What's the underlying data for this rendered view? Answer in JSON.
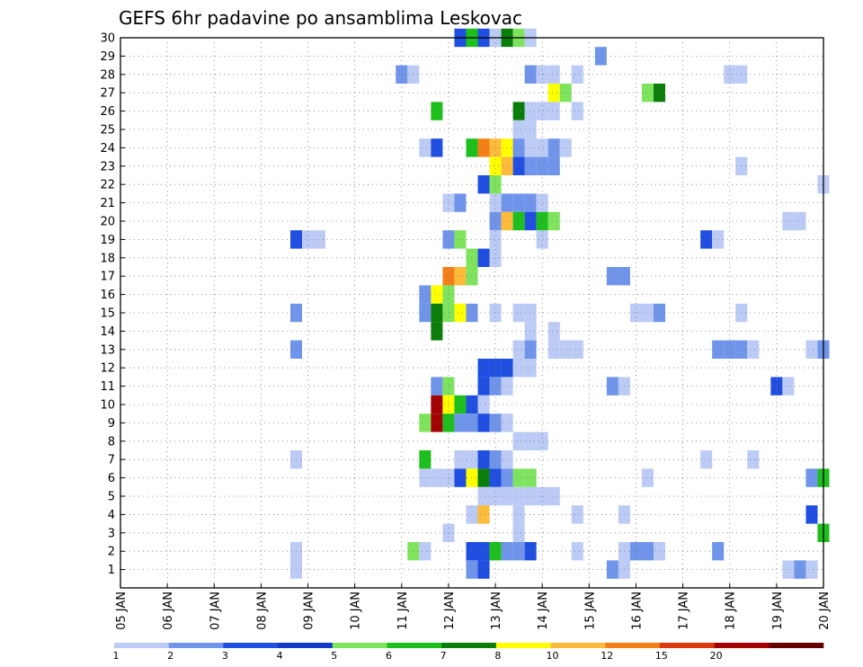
{
  "chart_data": {
    "type": "heatmap",
    "title": "GEFS 6hr padavine po ansamblima Leskovac",
    "xlabel": "",
    "ylabel": "",
    "x_tick_labels": [
      "05 JAN",
      "06 JAN",
      "07 JAN",
      "08 JAN",
      "09 JAN",
      "10 JAN",
      "11 JAN",
      "12 JAN",
      "13 JAN",
      "14 JAN",
      "15 JAN",
      "16 JAN",
      "17 JAN",
      "18 JAN",
      "19 JAN",
      "20 JAN"
    ],
    "x_range": [
      "05 JAN 00Z",
      "20 JAN 00Z"
    ],
    "time_step_hours": 6,
    "y_tick_labels": [
      "1",
      "2",
      "3",
      "4",
      "5",
      "6",
      "7",
      "8",
      "9",
      "10",
      "11",
      "12",
      "13",
      "14",
      "15",
      "16",
      "17",
      "18",
      "19",
      "20",
      "21",
      "22",
      "23",
      "24",
      "25",
      "26",
      "27",
      "28",
      "29",
      "30"
    ],
    "y_range": [
      0,
      30
    ],
    "grid": "dotted",
    "colorbar": {
      "position": "bottom",
      "tick_labels": [
        "1",
        "2",
        "3",
        "4",
        "5",
        "6",
        "7",
        "8",
        "10",
        "12",
        "15",
        "20"
      ],
      "colors": [
        "#bccbf5",
        "#6f94ea",
        "#1f4ee0",
        "#1339c7",
        "#7ee35d",
        "#1dbf1d",
        "#0b7d0b",
        "#ffff00",
        "#fdbb3b",
        "#f57f17",
        "#d93b0e",
        "#a40303",
        "#640000"
      ]
    },
    "cells": [
      {
        "m": 30,
        "t": [
          "12 JAN 06Z",
          "12 JAN 12Z",
          "12 JAN 18Z",
          "13 JAN 00Z",
          "13 JAN 06Z",
          "13 JAN 12Z",
          "13 JAN 18Z"
        ],
        "l": [
          3,
          6,
          3,
          1,
          7,
          5,
          1
        ]
      },
      {
        "m": 29,
        "t": [
          "15 JAN 06Z"
        ],
        "l": [
          2
        ]
      },
      {
        "m": 28,
        "t": [
          "11 JAN 00Z",
          "11 JAN 06Z",
          "13 JAN 18Z",
          "14 JAN 00Z",
          "14 JAN 06Z",
          "14 JAN 18Z",
          "18 JAN 00Z",
          "18 JAN 06Z"
        ],
        "l": [
          2,
          1,
          2,
          1,
          1,
          1,
          1,
          1
        ]
      },
      {
        "m": 27,
        "t": [
          "14 JAN 06Z",
          "14 JAN 12Z",
          "16 JAN 06Z",
          "16 JAN 12Z"
        ],
        "l": [
          8,
          5,
          5,
          7
        ]
      },
      {
        "m": 26,
        "t": [
          "11 JAN 18Z",
          "13 JAN 12Z",
          "13 JAN 18Z",
          "14 JAN 00Z",
          "14 JAN 06Z",
          "14 JAN 18Z"
        ],
        "l": [
          6,
          7,
          1,
          1,
          1,
          1
        ]
      },
      {
        "m": 25,
        "t": [
          "13 JAN 12Z",
          "13 JAN 18Z"
        ],
        "l": [
          1,
          1
        ]
      },
      {
        "m": 24,
        "t": [
          "11 JAN 12Z",
          "11 JAN 18Z",
          "12 JAN 12Z",
          "12 JAN 18Z",
          "13 JAN 00Z",
          "13 JAN 06Z",
          "13 JAN 12Z",
          "13 JAN 18Z",
          "14 JAN 00Z",
          "14 JAN 06Z",
          "14 JAN 12Z"
        ],
        "l": [
          1,
          3,
          6,
          10,
          9,
          8,
          2,
          1,
          1,
          2,
          1
        ]
      },
      {
        "m": 23,
        "t": [
          "13 JAN 00Z",
          "13 JAN 06Z",
          "13 JAN 12Z",
          "13 JAN 18Z",
          "14 JAN 00Z",
          "14 JAN 06Z",
          "18 JAN 06Z"
        ],
        "l": [
          8,
          9,
          3,
          2,
          2,
          2,
          1
        ]
      },
      {
        "m": 22,
        "t": [
          "12 JAN 18Z",
          "13 JAN 00Z",
          "20 JAN 00Z"
        ],
        "l": [
          3,
          5,
          1
        ]
      },
      {
        "m": 21,
        "t": [
          "12 JAN 00Z",
          "12 JAN 06Z",
          "13 JAN 00Z",
          "13 JAN 06Z",
          "13 JAN 12Z",
          "13 JAN 18Z",
          "14 JAN 00Z"
        ],
        "l": [
          1,
          2,
          1,
          2,
          2,
          2,
          1
        ]
      },
      {
        "m": 20,
        "t": [
          "13 JAN 00Z",
          "13 JAN 06Z",
          "13 JAN 12Z",
          "13 JAN 18Z",
          "14 JAN 00Z",
          "14 JAN 06Z",
          "19 JAN 06Z",
          "19 JAN 12Z"
        ],
        "l": [
          2,
          9,
          6,
          3,
          6,
          5,
          1,
          1
        ]
      },
      {
        "m": 19,
        "t": [
          "08 JAN 18Z",
          "09 JAN 00Z",
          "09 JAN 06Z",
          "12 JAN 00Z",
          "12 JAN 06Z",
          "13 JAN 00Z",
          "14 JAN 00Z",
          "17 JAN 12Z",
          "17 JAN 18Z"
        ],
        "l": [
          3,
          1,
          1,
          2,
          5,
          1,
          1,
          3,
          1
        ]
      },
      {
        "m": 18,
        "t": [
          "12 JAN 12Z",
          "12 JAN 18Z",
          "13 JAN 00Z"
        ],
        "l": [
          5,
          3,
          1
        ]
      },
      {
        "m": 17,
        "t": [
          "12 JAN 00Z",
          "12 JAN 06Z",
          "12 JAN 12Z",
          "15 JAN 12Z",
          "15 JAN 18Z"
        ],
        "l": [
          10,
          9,
          5,
          2,
          2
        ]
      },
      {
        "m": 16,
        "t": [
          "11 JAN 12Z",
          "11 JAN 18Z",
          "12 JAN 00Z"
        ],
        "l": [
          2,
          8,
          5
        ]
      },
      {
        "m": 15,
        "t": [
          "08 JAN 18Z",
          "11 JAN 12Z",
          "11 JAN 18Z",
          "12 JAN 00Z",
          "12 JAN 06Z",
          "12 JAN 12Z",
          "13 JAN 00Z",
          "13 JAN 12Z",
          "13 JAN 18Z",
          "16 JAN 00Z",
          "16 JAN 06Z",
          "16 JAN 12Z",
          "18 JAN 06Z"
        ],
        "l": [
          2,
          2,
          7,
          5,
          8,
          2,
          1,
          1,
          1,
          1,
          1,
          2,
          1
        ]
      },
      {
        "m": 14,
        "t": [
          "11 JAN 18Z",
          "13 JAN 18Z",
          "14 JAN 06Z"
        ],
        "l": [
          7,
          1,
          1
        ]
      },
      {
        "m": 13,
        "t": [
          "08 JAN 18Z",
          "13 JAN 12Z",
          "13 JAN 18Z",
          "14 JAN 06Z",
          "14 JAN 12Z",
          "14 JAN 18Z",
          "17 JAN 18Z",
          "18 JAN 00Z",
          "18 JAN 06Z",
          "18 JAN 12Z",
          "19 JAN 18Z",
          "20 JAN 00Z"
        ],
        "l": [
          2,
          1,
          2,
          1,
          1,
          1,
          2,
          2,
          2,
          1,
          1,
          2
        ]
      },
      {
        "m": 12,
        "t": [
          "12 JAN 18Z",
          "13 JAN 00Z",
          "13 JAN 06Z",
          "13 JAN 12Z",
          "13 JAN 18Z"
        ],
        "l": [
          3,
          3,
          3,
          1,
          1
        ]
      },
      {
        "m": 11,
        "t": [
          "11 JAN 18Z",
          "12 JAN 00Z",
          "12 JAN 18Z",
          "13 JAN 00Z",
          "13 JAN 06Z",
          "15 JAN 12Z",
          "15 JAN 18Z",
          "19 JAN 00Z",
          "19 JAN 06Z"
        ],
        "l": [
          2,
          5,
          3,
          2,
          1,
          2,
          1,
          3,
          1
        ]
      },
      {
        "m": 10,
        "t": [
          "11 JAN 18Z",
          "12 JAN 00Z",
          "12 JAN 06Z",
          "12 JAN 12Z",
          "12 JAN 18Z"
        ],
        "l": [
          12,
          8,
          6,
          3,
          1
        ]
      },
      {
        "m": 9,
        "t": [
          "11 JAN 12Z",
          "11 JAN 18Z",
          "12 JAN 00Z",
          "12 JAN 06Z",
          "12 JAN 12Z",
          "12 JAN 18Z",
          "13 JAN 00Z",
          "13 JAN 06Z"
        ],
        "l": [
          5,
          12,
          6,
          2,
          2,
          3,
          2,
          1
        ]
      },
      {
        "m": 8,
        "t": [
          "13 JAN 12Z",
          "13 JAN 18Z",
          "14 JAN 00Z"
        ],
        "l": [
          1,
          1,
          1
        ]
      },
      {
        "m": 7,
        "t": [
          "08 JAN 18Z",
          "11 JAN 12Z",
          "12 JAN 06Z",
          "12 JAN 12Z",
          "12 JAN 18Z",
          "13 JAN 00Z",
          "13 JAN 06Z",
          "17 JAN 12Z",
          "18 JAN 12Z"
        ],
        "l": [
          1,
          6,
          1,
          1,
          3,
          2,
          1,
          1,
          1
        ]
      },
      {
        "m": 6,
        "t": [
          "11 JAN 12Z",
          "11 JAN 18Z",
          "12 JAN 00Z",
          "12 JAN 06Z",
          "12 JAN 12Z",
          "12 JAN 18Z",
          "13 JAN 00Z",
          "13 JAN 06Z",
          "13 JAN 12Z",
          "13 JAN 18Z",
          "16 JAN 06Z",
          "19 JAN 18Z",
          "20 JAN 00Z"
        ],
        "l": [
          1,
          1,
          1,
          3,
          8,
          7,
          3,
          2,
          5,
          5,
          1,
          2,
          6
        ]
      },
      {
        "m": 5,
        "t": [
          "12 JAN 18Z",
          "13 JAN 00Z",
          "13 JAN 06Z",
          "13 JAN 12Z",
          "13 JAN 18Z",
          "14 JAN 00Z",
          "14 JAN 06Z"
        ],
        "l": [
          1,
          1,
          1,
          1,
          1,
          1,
          1
        ]
      },
      {
        "m": 4,
        "t": [
          "12 JAN 12Z",
          "12 JAN 18Z",
          "13 JAN 12Z",
          "14 JAN 18Z",
          "15 JAN 18Z",
          "19 JAN 18Z"
        ],
        "l": [
          1,
          9,
          1,
          1,
          1,
          3
        ]
      },
      {
        "m": 3,
        "t": [
          "12 JAN 00Z",
          "13 JAN 12Z",
          "20 JAN 00Z"
        ],
        "l": [
          1,
          1,
          6
        ]
      },
      {
        "m": 2,
        "t": [
          "08 JAN 18Z",
          "11 JAN 06Z",
          "11 JAN 12Z",
          "12 JAN 12Z",
          "12 JAN 18Z",
          "13 JAN 00Z",
          "13 JAN 06Z",
          "13 JAN 12Z",
          "13 JAN 18Z",
          "14 JAN 18Z",
          "15 JAN 18Z",
          "16 JAN 00Z",
          "16 JAN 06Z",
          "16 JAN 12Z",
          "17 JAN 18Z"
        ],
        "l": [
          1,
          5,
          1,
          3,
          3,
          6,
          2,
          2,
          3,
          1,
          1,
          2,
          2,
          1,
          2
        ]
      },
      {
        "m": 1,
        "t": [
          "08 JAN 18Z",
          "12 JAN 12Z",
          "12 JAN 18Z",
          "15 JAN 12Z",
          "15 JAN 18Z",
          "19 JAN 06Z",
          "19 JAN 12Z",
          "19 JAN 18Z"
        ],
        "l": [
          1,
          2,
          3,
          2,
          1,
          1,
          2,
          1
        ]
      }
    ]
  }
}
